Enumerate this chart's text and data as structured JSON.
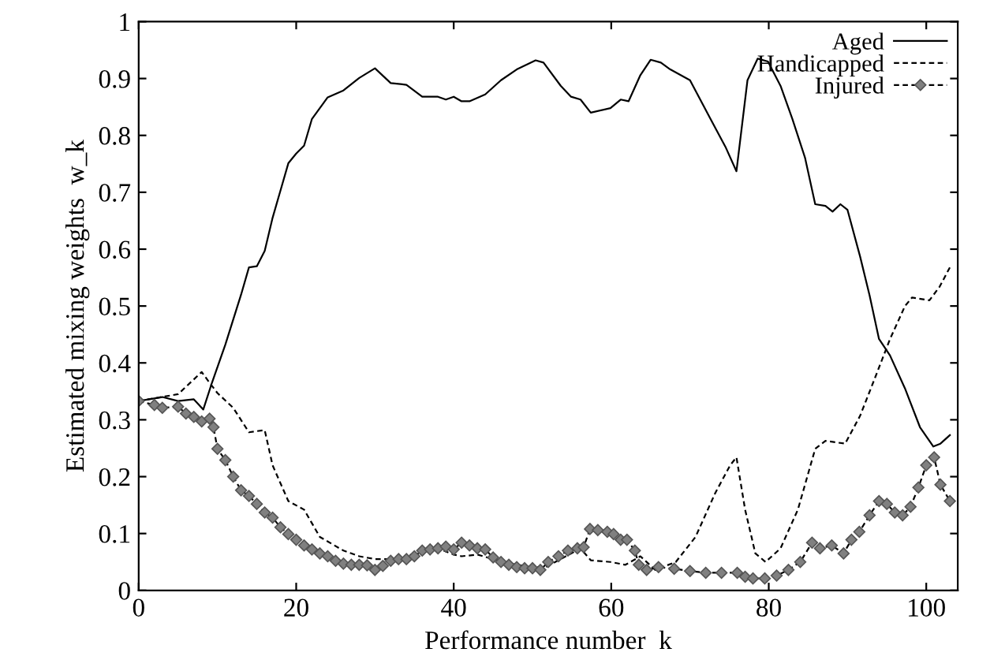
{
  "chart_data": {
    "type": "line",
    "xlabel": "Performance number  k",
    "ylabel": "Estimated mixing weights  w_k",
    "xlim": [
      0,
      104
    ],
    "ylim": [
      0,
      1
    ],
    "xticks": [
      0,
      20,
      40,
      60,
      80,
      100
    ],
    "yticks": [
      0,
      0.1,
      0.2,
      0.3,
      0.4,
      0.5,
      0.6,
      0.7,
      0.8,
      0.9,
      1
    ],
    "grid": false,
    "legend": "top right",
    "series": [
      {
        "name": "Aged",
        "color": "#000000",
        "line_style": "solid",
        "marker": "none",
        "x": [
          0,
          3,
          5,
          7,
          8.2,
          9.3,
          11,
          13,
          14,
          15,
          16,
          17,
          18,
          19,
          20,
          21,
          22,
          24,
          26,
          28,
          30,
          32,
          34,
          36,
          38,
          39,
          40,
          41,
          42,
          44,
          46,
          48,
          50.4,
          51.4,
          53.6,
          54.9,
          56.1,
          57.4,
          59.9,
          61.2,
          62.2,
          63.7,
          65,
          66.3,
          67.5,
          70,
          72.6,
          74.5,
          75.9,
          77.3,
          78.6,
          79.9,
          81.5,
          83,
          84.6,
          85.9,
          87.2,
          88.1,
          89.1,
          90,
          91.6,
          92.8,
          94,
          95.4,
          97.3,
          99.2,
          100.9,
          101.8,
          103
        ],
        "values": [
          0.333,
          0.34,
          0.333,
          0.336,
          0.318,
          0.365,
          0.432,
          0.52,
          0.568,
          0.57,
          0.597,
          0.655,
          0.703,
          0.751,
          0.768,
          0.782,
          0.829,
          0.867,
          0.879,
          0.901,
          0.918,
          0.892,
          0.889,
          0.868,
          0.868,
          0.863,
          0.868,
          0.86,
          0.86,
          0.872,
          0.897,
          0.916,
          0.932,
          0.928,
          0.887,
          0.868,
          0.863,
          0.84,
          0.848,
          0.863,
          0.86,
          0.906,
          0.933,
          0.928,
          0.916,
          0.897,
          0.829,
          0.78,
          0.737,
          0.897,
          0.935,
          0.93,
          0.887,
          0.829,
          0.761,
          0.679,
          0.676,
          0.666,
          0.679,
          0.669,
          0.587,
          0.519,
          0.442,
          0.413,
          0.355,
          0.287,
          0.253,
          0.258,
          0.273
        ]
      },
      {
        "name": "Handicapped",
        "color": "#000000",
        "line_style": "dashed",
        "marker": "none",
        "x": [
          0,
          5,
          8,
          9,
          10,
          12,
          14,
          15,
          16,
          17,
          19,
          21,
          23,
          26,
          28,
          30,
          33,
          36,
          38,
          40,
          41,
          43,
          45,
          48,
          50,
          51.7,
          54.9,
          56.1,
          57.4,
          59.9,
          61.8,
          63.7,
          65.6,
          68.2,
          70.7,
          73.2,
          75.1,
          75.9,
          77,
          78.3,
          79.6,
          81.5,
          83.7,
          85.9,
          87.2,
          89.7,
          91.6,
          93.5,
          95.4,
          97.3,
          98.2,
          100.4,
          101.7,
          103
        ],
        "values": [
          0.333,
          0.345,
          0.384,
          0.365,
          0.347,
          0.321,
          0.278,
          0.28,
          0.282,
          0.22,
          0.157,
          0.142,
          0.094,
          0.07,
          0.06,
          0.055,
          0.055,
          0.07,
          0.074,
          0.063,
          0.06,
          0.063,
          0.055,
          0.045,
          0.041,
          0.041,
          0.065,
          0.074,
          0.053,
          0.05,
          0.045,
          0.06,
          0.036,
          0.05,
          0.094,
          0.171,
          0.22,
          0.234,
          0.142,
          0.065,
          0.05,
          0.074,
          0.142,
          0.249,
          0.263,
          0.258,
          0.307,
          0.374,
          0.442,
          0.5,
          0.515,
          0.51,
          0.534,
          0.568
        ]
      },
      {
        "name": "Injured",
        "color": "#808080",
        "line_style": "dashed",
        "marker": "diamond",
        "x": [
          0,
          2,
          3,
          5,
          6,
          7,
          8,
          9,
          9.5,
          10,
          11,
          12,
          13,
          14,
          15,
          16,
          17,
          18,
          19,
          20,
          21,
          22,
          23,
          24,
          25,
          26,
          27,
          28,
          29,
          30,
          31,
          32,
          33,
          34,
          35,
          36,
          37,
          38,
          39,
          40,
          41,
          42,
          43,
          44,
          45,
          46,
          47,
          48,
          49,
          50,
          51,
          52,
          53.3,
          54.5,
          55.7,
          56.5,
          57.3,
          58.3,
          59.5,
          60.3,
          61.2,
          62,
          63,
          63.5,
          64.5,
          66,
          68,
          70,
          72,
          74,
          76,
          77,
          78,
          79.5,
          81,
          82.5,
          84,
          85.5,
          86.5,
          88,
          89.5,
          90.5,
          91.5,
          92.8,
          94,
          95,
          96,
          97,
          98,
          99,
          100,
          101,
          101.8,
          103
        ],
        "values": [
          0.333,
          0.326,
          0.321,
          0.323,
          0.311,
          0.305,
          0.297,
          0.302,
          0.287,
          0.249,
          0.229,
          0.2,
          0.176,
          0.166,
          0.152,
          0.137,
          0.128,
          0.111,
          0.099,
          0.089,
          0.079,
          0.072,
          0.065,
          0.06,
          0.052,
          0.047,
          0.045,
          0.045,
          0.044,
          0.036,
          0.043,
          0.052,
          0.055,
          0.055,
          0.06,
          0.07,
          0.072,
          0.074,
          0.077,
          0.072,
          0.084,
          0.079,
          0.074,
          0.072,
          0.058,
          0.05,
          0.045,
          0.041,
          0.039,
          0.039,
          0.036,
          0.05,
          0.06,
          0.07,
          0.074,
          0.076,
          0.108,
          0.106,
          0.103,
          0.099,
          0.089,
          0.089,
          0.07,
          0.045,
          0.036,
          0.041,
          0.038,
          0.034,
          0.031,
          0.031,
          0.031,
          0.024,
          0.021,
          0.021,
          0.026,
          0.036,
          0.05,
          0.084,
          0.074,
          0.079,
          0.065,
          0.089,
          0.103,
          0.132,
          0.157,
          0.152,
          0.137,
          0.132,
          0.147,
          0.181,
          0.22,
          0.234,
          0.186,
          0.157
        ]
      }
    ]
  }
}
